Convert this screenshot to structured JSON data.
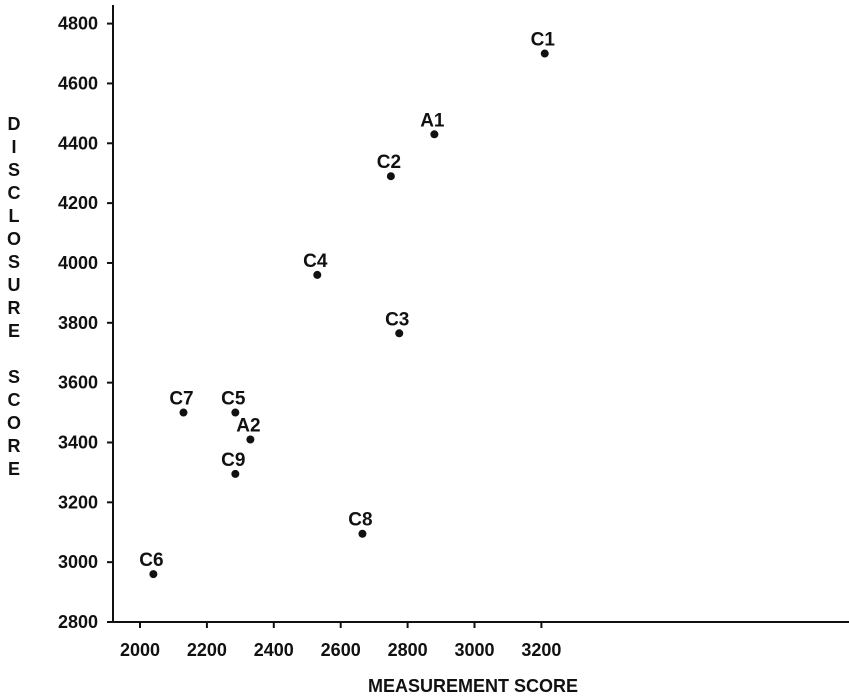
{
  "chart_data": {
    "type": "scatter",
    "title": "",
    "xlabel": "MEASUREMENT SCORE",
    "ylabel": "DISCLOSURE SCORE",
    "xlim": [
      1930,
      3250
    ],
    "ylim": [
      2800,
      4850
    ],
    "xticks": [
      2000,
      2200,
      2400,
      2600,
      2800,
      3000,
      3200
    ],
    "yticks": [
      2800,
      3000,
      3200,
      3400,
      3600,
      3800,
      4000,
      4200,
      4400,
      4600,
      4800
    ],
    "grid": false,
    "legend": "none",
    "points": [
      {
        "label": "C1",
        "x": 3210,
        "y": 4700
      },
      {
        "label": "A1",
        "x": 2880,
        "y": 4430
      },
      {
        "label": "C2",
        "x": 2750,
        "y": 4290
      },
      {
        "label": "C4",
        "x": 2530,
        "y": 3960
      },
      {
        "label": "C3",
        "x": 2775,
        "y": 3765
      },
      {
        "label": "C7",
        "x": 2130,
        "y": 3500
      },
      {
        "label": "C5",
        "x": 2285,
        "y": 3500
      },
      {
        "label": "A2",
        "x": 2330,
        "y": 3410
      },
      {
        "label": "C9",
        "x": 2285,
        "y": 3295
      },
      {
        "label": "C8",
        "x": 2665,
        "y": 3095
      },
      {
        "label": "C6",
        "x": 2040,
        "y": 2960
      }
    ]
  }
}
